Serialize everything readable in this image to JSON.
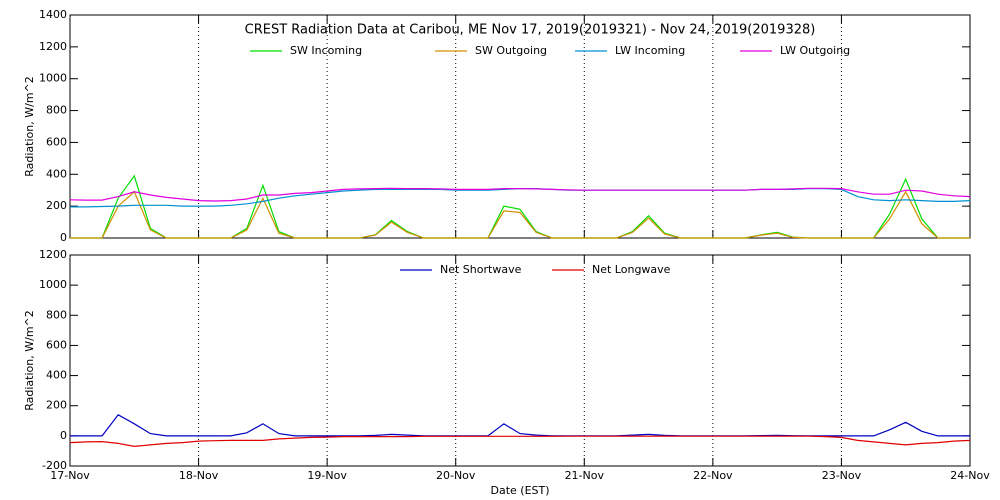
{
  "chart_data": [
    {
      "type": "line",
      "title": "CREST Radiation Data at Caribou, ME   Nov 17, 2019(2019321) - Nov 24, 2019(2019328)",
      "ylabel": "Radiation, W/m^2",
      "x": [
        0,
        0.125,
        0.25,
        0.375,
        0.5,
        0.625,
        0.75,
        0.875,
        1,
        1.125,
        1.25,
        1.375,
        1.5,
        1.625,
        1.75,
        1.875,
        2,
        2.125,
        2.25,
        2.375,
        2.5,
        2.625,
        2.75,
        2.875,
        3,
        3.125,
        3.25,
        3.375,
        3.5,
        3.625,
        3.75,
        3.875,
        4,
        4.125,
        4.25,
        4.375,
        4.5,
        4.625,
        4.75,
        4.875,
        5,
        5.125,
        5.25,
        5.375,
        5.5,
        5.625,
        5.75,
        5.875,
        6,
        6.125,
        6.25,
        6.375,
        6.5,
        6.625,
        6.75,
        6.875,
        7
      ],
      "xlim": [
        0,
        7
      ],
      "xticks": [
        {
          "value": 0,
          "label": "17-Nov"
        },
        {
          "value": 1,
          "label": "18-Nov"
        },
        {
          "value": 2,
          "label": "19-Nov"
        },
        {
          "value": 3,
          "label": "20-Nov"
        },
        {
          "value": 4,
          "label": "21-Nov"
        },
        {
          "value": 5,
          "label": "22-Nov"
        },
        {
          "value": 6,
          "label": "23-Nov"
        },
        {
          "value": 7,
          "label": "24-Nov"
        }
      ],
      "ylim": [
        0,
        1400
      ],
      "yticks": [
        0,
        200,
        400,
        600,
        800,
        1000,
        1200,
        1400
      ],
      "grid": "x",
      "series": [
        {
          "name": "SW Incoming",
          "color": "#00dd00",
          "values": [
            0,
            0,
            0,
            250,
            390,
            60,
            0,
            0,
            0,
            0,
            0,
            60,
            330,
            40,
            0,
            0,
            0,
            0,
            0,
            20,
            110,
            40,
            0,
            0,
            0,
            0,
            0,
            200,
            180,
            40,
            0,
            0,
            0,
            0,
            0,
            40,
            140,
            30,
            0,
            0,
            0,
            0,
            0,
            20,
            35,
            5,
            0,
            0,
            0,
            0,
            0,
            150,
            370,
            120,
            0,
            0,
            0
          ]
        },
        {
          "name": "SW Outgoing",
          "color": "#d09000",
          "values": [
            0,
            0,
            0,
            200,
            290,
            50,
            0,
            0,
            0,
            0,
            0,
            50,
            250,
            30,
            0,
            0,
            0,
            0,
            0,
            18,
            100,
            35,
            0,
            0,
            0,
            0,
            0,
            170,
            160,
            35,
            0,
            0,
            0,
            0,
            0,
            35,
            125,
            25,
            0,
            0,
            0,
            0,
            0,
            18,
            30,
            4,
            0,
            0,
            0,
            0,
            0,
            120,
            290,
            90,
            0,
            0,
            0
          ]
        },
        {
          "name": "LW Incoming",
          "color": "#0090d0",
          "values": [
            195,
            195,
            198,
            200,
            205,
            205,
            205,
            200,
            200,
            200,
            205,
            215,
            230,
            250,
            265,
            275,
            285,
            295,
            300,
            305,
            305,
            305,
            305,
            305,
            300,
            300,
            300,
            305,
            310,
            310,
            305,
            300,
            300,
            300,
            300,
            300,
            300,
            300,
            300,
            300,
            300,
            300,
            300,
            305,
            305,
            305,
            310,
            310,
            305,
            260,
            240,
            235,
            240,
            235,
            230,
            230,
            235
          ]
        },
        {
          "name": "LW Outgoing",
          "color": "#e000e0",
          "values": [
            240,
            238,
            238,
            260,
            290,
            270,
            255,
            245,
            235,
            232,
            235,
            245,
            270,
            270,
            280,
            285,
            295,
            305,
            308,
            310,
            312,
            310,
            310,
            308,
            305,
            305,
            305,
            310,
            310,
            308,
            305,
            302,
            300,
            300,
            300,
            300,
            300,
            300,
            300,
            300,
            300,
            300,
            300,
            305,
            305,
            308,
            312,
            312,
            310,
            290,
            275,
            275,
            300,
            295,
            275,
            265,
            260
          ]
        }
      ]
    },
    {
      "type": "line",
      "ylabel": "Radiation, W/m^2",
      "xlabel": "Date (EST)",
      "x": [
        0,
        0.125,
        0.25,
        0.375,
        0.5,
        0.625,
        0.75,
        0.875,
        1,
        1.125,
        1.25,
        1.375,
        1.5,
        1.625,
        1.75,
        1.875,
        2,
        2.125,
        2.25,
        2.375,
        2.5,
        2.625,
        2.75,
        2.875,
        3,
        3.125,
        3.25,
        3.375,
        3.5,
        3.625,
        3.75,
        3.875,
        4,
        4.125,
        4.25,
        4.375,
        4.5,
        4.625,
        4.75,
        4.875,
        5,
        5.125,
        5.25,
        5.375,
        5.5,
        5.625,
        5.75,
        5.875,
        6,
        6.125,
        6.25,
        6.375,
        6.5,
        6.625,
        6.75,
        6.875,
        7
      ],
      "xlim": [
        0,
        7
      ],
      "xticks": [
        {
          "value": 0,
          "label": "17-Nov"
        },
        {
          "value": 1,
          "label": "18-Nov"
        },
        {
          "value": 2,
          "label": "19-Nov"
        },
        {
          "value": 3,
          "label": "20-Nov"
        },
        {
          "value": 4,
          "label": "21-Nov"
        },
        {
          "value": 5,
          "label": "22-Nov"
        },
        {
          "value": 6,
          "label": "23-Nov"
        },
        {
          "value": 7,
          "label": "24-Nov"
        }
      ],
      "ylim": [
        -200,
        1200
      ],
      "yticks": [
        -200,
        0,
        200,
        400,
        600,
        800,
        1000,
        1200
      ],
      "grid": "x",
      "series": [
        {
          "name": "Net Shortwave",
          "color": "#0000c0",
          "values": [
            0,
            0,
            0,
            140,
            80,
            15,
            0,
            0,
            0,
            0,
            0,
            20,
            80,
            15,
            0,
            0,
            0,
            0,
            0,
            3,
            10,
            5,
            0,
            0,
            0,
            0,
            0,
            80,
            15,
            5,
            0,
            0,
            0,
            0,
            0,
            5,
            10,
            3,
            0,
            0,
            0,
            0,
            0,
            2,
            4,
            1,
            0,
            0,
            0,
            0,
            0,
            40,
            90,
            30,
            0,
            0,
            0
          ]
        },
        {
          "name": "Net Longwave",
          "color": "#e00000",
          "values": [
            -45,
            -40,
            -38,
            -50,
            -70,
            -60,
            -50,
            -45,
            -35,
            -32,
            -30,
            -30,
            -30,
            -20,
            -15,
            -10,
            -8,
            -5,
            -5,
            -5,
            -5,
            -5,
            -3,
            -3,
            -3,
            -3,
            -3,
            -3,
            -3,
            -3,
            -3,
            -2,
            -2,
            -2,
            -2,
            -2,
            -2,
            -2,
            -2,
            -2,
            -2,
            -2,
            -2,
            -2,
            -2,
            -2,
            -2,
            -5,
            -10,
            -30,
            -40,
            -50,
            -60,
            -50,
            -45,
            -35,
            -30
          ]
        }
      ]
    }
  ]
}
